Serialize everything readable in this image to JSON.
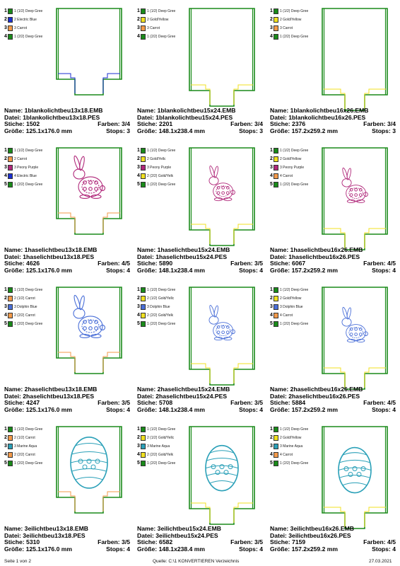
{
  "labels": {
    "name": "Name:",
    "datei": "Datei:",
    "stiche": "Stiche:",
    "groesse": "Größe:",
    "farben": "Farben:",
    "stops": "Stops:"
  },
  "footer": {
    "page": "Seite 1 von 2",
    "source": "Quelle: C:\\1 KONVERTIEREN Verzeichnis",
    "date": "27.03.2021"
  },
  "cards": [
    {
      "name": "1blankolichtbeu13x18.EMB",
      "file": "1blankolichtbeu13x18.PES",
      "stitches": "1502",
      "size": "125.1x176.0 mm",
      "colors": "3/4",
      "stops": "3",
      "motif": "none",
      "motif_color": "#cccccc",
      "legend": [
        {
          "num": "1",
          "swatch": "#1a8a1a",
          "name": "1 (1/2) Deep Gree"
        },
        {
          "num": "2",
          "swatch": "#1b2fd0",
          "name": "2 Electric Blue"
        },
        {
          "num": "3",
          "swatch": "#f39a4a",
          "name": "3 Carrot"
        },
        {
          "num": "4",
          "swatch": "#1a8a1a",
          "name": "1 (2/2) Deep Gree"
        }
      ]
    },
    {
      "name": "1blankolichtbeu15x24.EMB",
      "file": "1blankolichtbeu15x24.PES",
      "stitches": "2201",
      "size": "148.1x238.4 mm",
      "colors": "3/4",
      "stops": "3",
      "motif": "none",
      "motif_color": "#cccccc",
      "legend": [
        {
          "num": "1",
          "swatch": "#1a8a1a",
          "name": "1 (1/2) Deep Gree"
        },
        {
          "num": "2",
          "swatch": "#f0e020",
          "name": "2 Gold/Yellow"
        },
        {
          "num": "3",
          "swatch": "#f39a4a",
          "name": "3 Carrot"
        },
        {
          "num": "4",
          "swatch": "#1a8a1a",
          "name": "1 (2/2) Deep Gree"
        }
      ]
    },
    {
      "name": "1blankolichtbeu16x26.EMB",
      "file": "1blankolichtbeu16x26.PES",
      "stitches": "2376",
      "size": "157.2x259.2 mm",
      "colors": "3/4",
      "stops": "3",
      "motif": "none",
      "motif_color": "#cccccc",
      "legend": [
        {
          "num": "1",
          "swatch": "#1a8a1a",
          "name": "1 (1/2) Deep Gree"
        },
        {
          "num": "2",
          "swatch": "#f0e020",
          "name": "2 Gold/Yellow"
        },
        {
          "num": "3",
          "swatch": "#f39a4a",
          "name": "3 Carrot"
        },
        {
          "num": "4",
          "swatch": "#1a8a1a",
          "name": "1 (2/2) Deep Gree"
        }
      ]
    },
    {
      "name": "1haselichtbeu13x18.EMB",
      "file": "1haselichtbeu13x18.PES",
      "stitches": "4626",
      "size": "125.1x176.0 mm",
      "colors": "4/5",
      "stops": "4",
      "motif": "rabbit",
      "motif_color": "#b0287a",
      "legend": [
        {
          "num": "1",
          "swatch": "#1a8a1a",
          "name": "1 (1/2) Deep Gree"
        },
        {
          "num": "2",
          "swatch": "#f39a4a",
          "name": "2 Carrot"
        },
        {
          "num": "3",
          "swatch": "#b0287a",
          "name": "3 Peony Purple"
        },
        {
          "num": "4",
          "swatch": "#1b2fd0",
          "name": "4 Electric Blue"
        },
        {
          "num": "5",
          "swatch": "#1a8a1a",
          "name": "1 (2/2) Deep Gree"
        }
      ]
    },
    {
      "name": "1haselichtbeu15x24.EMB",
      "file": "1haselichtbeu15x24.PES",
      "stitches": "5890",
      "size": "148.1x238.4 mm",
      "colors": "3/5",
      "stops": "4",
      "motif": "rabbit",
      "motif_color": "#b0287a",
      "legend": [
        {
          "num": "1",
          "swatch": "#1a8a1a",
          "name": "1 (1/2) Deep Gree"
        },
        {
          "num": "2",
          "swatch": "#f0e020",
          "name": "2 Gold/Yellc"
        },
        {
          "num": "3",
          "swatch": "#b0287a",
          "name": "3 Peony Purple"
        },
        {
          "num": "4",
          "swatch": "#f0e020",
          "name": "2 (2/2) Gold/Yelk"
        },
        {
          "num": "5",
          "swatch": "#1a8a1a",
          "name": "1 (2/2) Deep Gree"
        }
      ]
    },
    {
      "name": "1haselichtbeu16x26.EMB",
      "file": "1haselichtbeu16x26.PES",
      "stitches": "6067",
      "size": "157.2x259.2 mm",
      "colors": "4/5",
      "stops": "4",
      "motif": "rabbit",
      "motif_color": "#b0287a",
      "legend": [
        {
          "num": "1",
          "swatch": "#1a8a1a",
          "name": "1 (1/2) Deep Gree"
        },
        {
          "num": "2",
          "swatch": "#f0e020",
          "name": "2 Gold/Yellow"
        },
        {
          "num": "3",
          "swatch": "#b0287a",
          "name": "3 Peony Purple"
        },
        {
          "num": "4",
          "swatch": "#f39a4a",
          "name": "4 Carrot"
        },
        {
          "num": "5",
          "swatch": "#1a8a1a",
          "name": "1 (2/2) Deep Gree"
        }
      ]
    },
    {
      "name": "2haselichtbeu13x18.EMB",
      "file": "2haselichtbeu13x18.PES",
      "stitches": "4247",
      "size": "125.1x176.0 mm",
      "colors": "3/5",
      "stops": "4",
      "motif": "rabbit2",
      "motif_color": "#4a6fd8",
      "legend": [
        {
          "num": "1",
          "swatch": "#1a8a1a",
          "name": "1 (1/2) Deep Gree"
        },
        {
          "num": "2",
          "swatch": "#f39a4a",
          "name": "2 (1/2) Carrot"
        },
        {
          "num": "3",
          "swatch": "#4a6fd8",
          "name": "3 Dolphin Blue"
        },
        {
          "num": "4",
          "swatch": "#f39a4a",
          "name": "2 (2/2) Carrot"
        },
        {
          "num": "5",
          "swatch": "#1a8a1a",
          "name": "1 (2/2) Deep Gree"
        }
      ]
    },
    {
      "name": "2haselichtbeu15x24.EMB",
      "file": "2haselichtbeu15x24.PES",
      "stitches": "5708",
      "size": "148.1x238.4 mm",
      "colors": "3/5",
      "stops": "4",
      "motif": "rabbit2",
      "motif_color": "#4a6fd8",
      "legend": [
        {
          "num": "1",
          "swatch": "#1a8a1a",
          "name": "1 (1/2) Deep Gree"
        },
        {
          "num": "2",
          "swatch": "#f0e020",
          "name": "2 (1/2) Gold/Yellc"
        },
        {
          "num": "3",
          "swatch": "#4a6fd8",
          "name": "3 Dolphin Blue"
        },
        {
          "num": "4",
          "swatch": "#f0e020",
          "name": "2 (2/2) Gold/Yelk"
        },
        {
          "num": "5",
          "swatch": "#1a8a1a",
          "name": "1 (2/2) Deep Gree"
        }
      ]
    },
    {
      "name": "2haselichtbeu16x26.EMB",
      "file": "2haselichtbeu16x26.PES",
      "stitches": "5884",
      "size": "157.2x259.2 mm",
      "colors": "4/5",
      "stops": "4",
      "motif": "rabbit2",
      "motif_color": "#4a6fd8",
      "legend": [
        {
          "num": "1",
          "swatch": "#1a8a1a",
          "name": "1 (1/2) Deep Gree"
        },
        {
          "num": "2",
          "swatch": "#f0e020",
          "name": "2 Gold/Yellow"
        },
        {
          "num": "3",
          "swatch": "#4a6fd8",
          "name": "3 Dolphin Blue"
        },
        {
          "num": "4",
          "swatch": "#f39a4a",
          "name": "4 Carrot"
        },
        {
          "num": "5",
          "swatch": "#1a8a1a",
          "name": "1 (2/2) Deep Gree"
        }
      ]
    },
    {
      "name": "3eilichtbeu13x18.EMB",
      "file": "3eilichtbeu13x18.PES",
      "stitches": "5310",
      "size": "125.1x176.0 mm",
      "colors": "3/5",
      "stops": "4",
      "motif": "egg",
      "motif_color": "#2aa0b8",
      "legend": [
        {
          "num": "1",
          "swatch": "#1a8a1a",
          "name": "1 (1/2) Deep Gree"
        },
        {
          "num": "2",
          "swatch": "#f39a4a",
          "name": "2 (1/2) Carrot"
        },
        {
          "num": "3",
          "swatch": "#2aa0b8",
          "name": "3 Marine Aqua"
        },
        {
          "num": "4",
          "swatch": "#f39a4a",
          "name": "2 (2/2) Carrot"
        },
        {
          "num": "5",
          "swatch": "#1a8a1a",
          "name": "1 (2/2) Deep Gree"
        }
      ]
    },
    {
      "name": "3eilichtbeu15x24.EMB",
      "file": "3eilichtbeu15x24.PES",
      "stitches": "6582",
      "size": "148.1x238.4 mm",
      "colors": "3/5",
      "stops": "4",
      "motif": "egg",
      "motif_color": "#2aa0b8",
      "legend": [
        {
          "num": "1",
          "swatch": "#1a8a1a",
          "name": "1 (1/2) Deep Gree"
        },
        {
          "num": "2",
          "swatch": "#f0e020",
          "name": "2 (1/2) Gold/Yellc"
        },
        {
          "num": "3",
          "swatch": "#2aa0b8",
          "name": "3 Marine Aqua"
        },
        {
          "num": "4",
          "swatch": "#f0e020",
          "name": "2 (2/2) Gold/Yelk"
        },
        {
          "num": "5",
          "swatch": "#1a8a1a",
          "name": "1 (2/2) Deep Gree"
        }
      ]
    },
    {
      "name": "3eilichtbeu16x26.EMB",
      "file": "3eilichtbeu16x26.PES",
      "stitches": "7159",
      "size": "157.2x259.2 mm",
      "colors": "4/5",
      "stops": "4",
      "motif": "egg",
      "motif_color": "#2aa0b8",
      "legend": [
        {
          "num": "1",
          "swatch": "#1a8a1a",
          "name": "1 (1/2) Deep Gree"
        },
        {
          "num": "2",
          "swatch": "#f0e020",
          "name": "2 Gold/Yellow"
        },
        {
          "num": "3",
          "swatch": "#2aa0b8",
          "name": "3 Marine Aqua"
        },
        {
          "num": "4",
          "swatch": "#f39a4a",
          "name": "4 Carrot"
        },
        {
          "num": "5",
          "swatch": "#1a8a1a",
          "name": "1 (2/2) Deep Gree"
        }
      ]
    }
  ]
}
